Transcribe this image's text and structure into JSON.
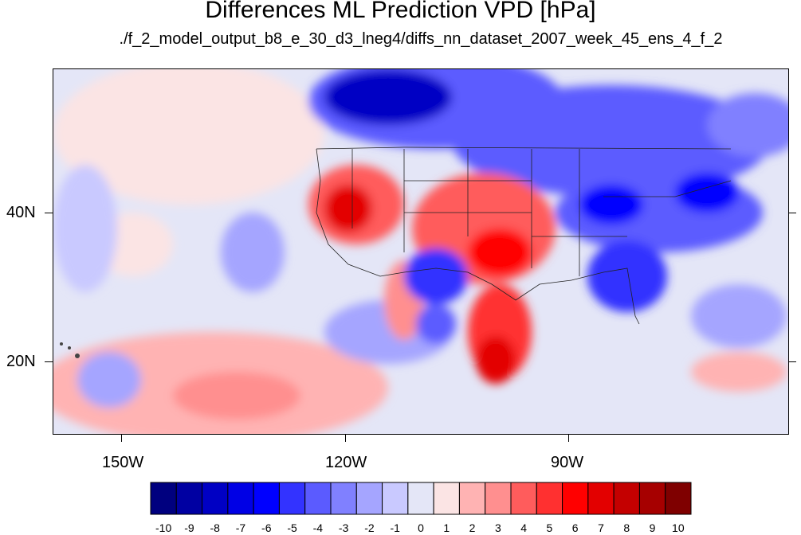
{
  "title": "Differences ML Prediction VPD [hPa]",
  "subtitle": "./f_2_model_output_b8_e_30_d3_lneg4/diffs_nn_dataset_2007_week_45_ens_4_f_2",
  "lat_labels": [
    "40N",
    "20N"
  ],
  "lon_labels": [
    "150W",
    "120W",
    "90W"
  ],
  "colorbar": {
    "labels": [
      "-10",
      "-9",
      "-8",
      "-7",
      "-6",
      "-5",
      "-4",
      "-3",
      "-2",
      "-1",
      "0",
      "1",
      "2",
      "3",
      "4",
      "5",
      "6",
      "7",
      "8",
      "9",
      "10"
    ],
    "colors": [
      "#00007f",
      "#0000a2",
      "#0000c4",
      "#0000e5",
      "#0000ff",
      "#3333ff",
      "#5b5bff",
      "#8080ff",
      "#a5a5ff",
      "#c9c9ff",
      "#e4e6f7",
      "#fbe4e4",
      "#ffb3b3",
      "#ff8f8f",
      "#ff5c5c",
      "#ff3030",
      "#ff0000",
      "#e30000",
      "#c40000",
      "#a60000",
      "#7f0000"
    ]
  }
}
